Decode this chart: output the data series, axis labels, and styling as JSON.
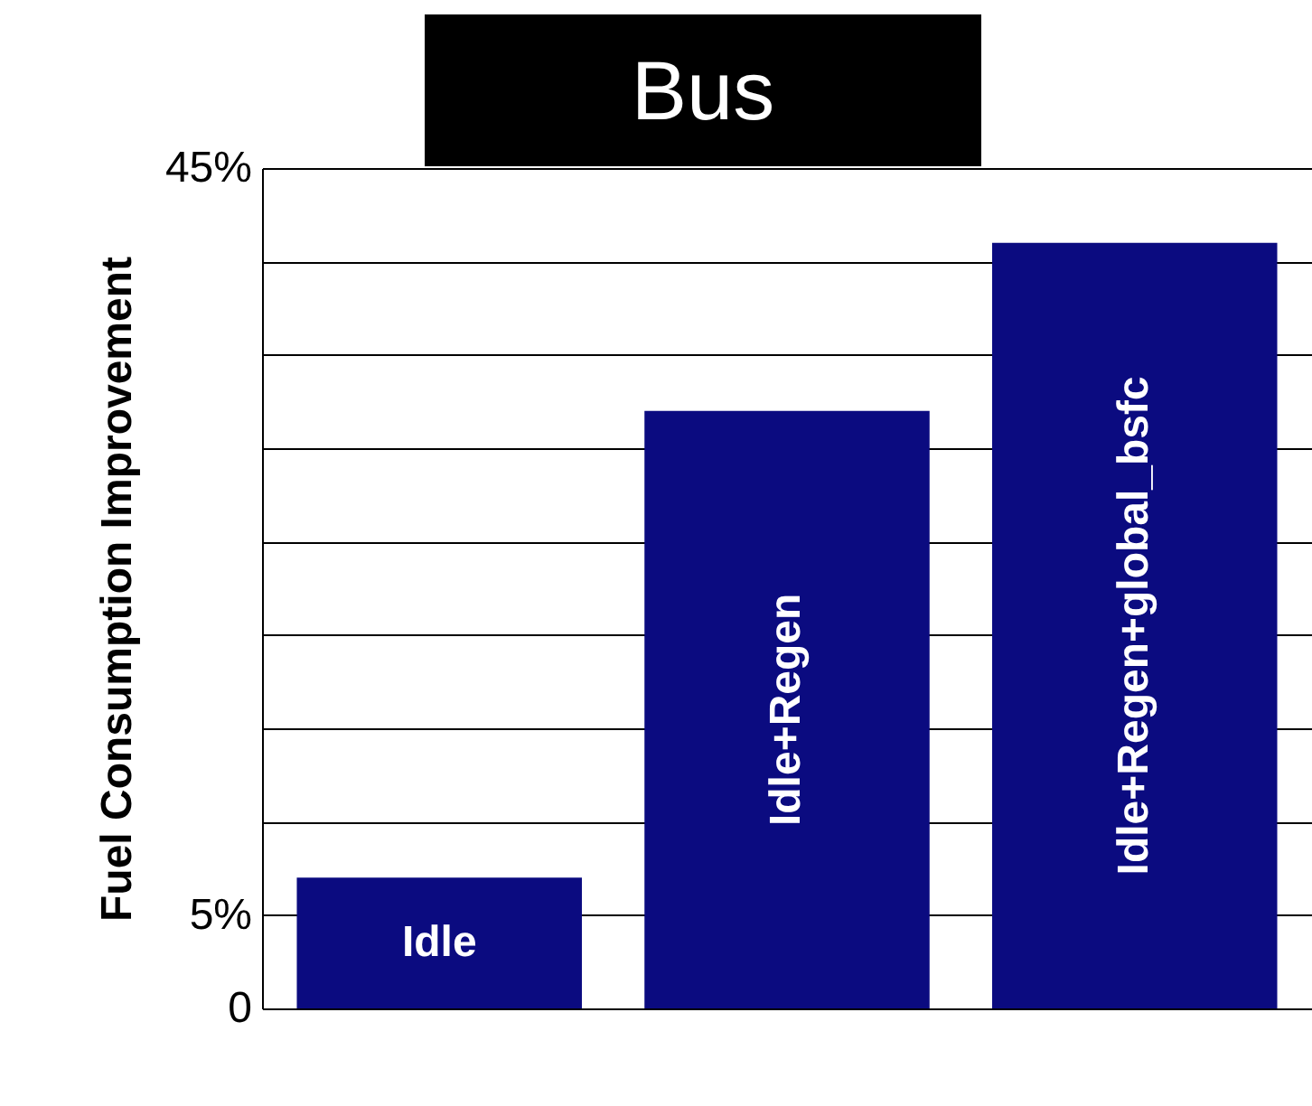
{
  "chart_data": {
    "type": "bar",
    "title": "Bus",
    "ylabel": "Fuel Consumption Improvement",
    "categories": [
      "Idle",
      "Idle+Regen",
      "Idle+Regen+global_bsfc"
    ],
    "values": [
      7,
      32,
      41
    ],
    "color": "#0b0b80",
    "ylim": [
      0,
      45
    ],
    "yticks": [
      {
        "value": 0,
        "label": "0"
      },
      {
        "value": 5,
        "label": "5%"
      },
      {
        "value": 10,
        "label": null
      },
      {
        "value": 15,
        "label": null
      },
      {
        "value": 20,
        "label": null
      },
      {
        "value": 25,
        "label": null
      },
      {
        "value": 30,
        "label": null
      },
      {
        "value": 35,
        "label": null
      },
      {
        "value": 40,
        "label": null
      },
      {
        "value": 45,
        "label": "45%"
      }
    ],
    "grid": "y",
    "tick_labels": "y"
  }
}
